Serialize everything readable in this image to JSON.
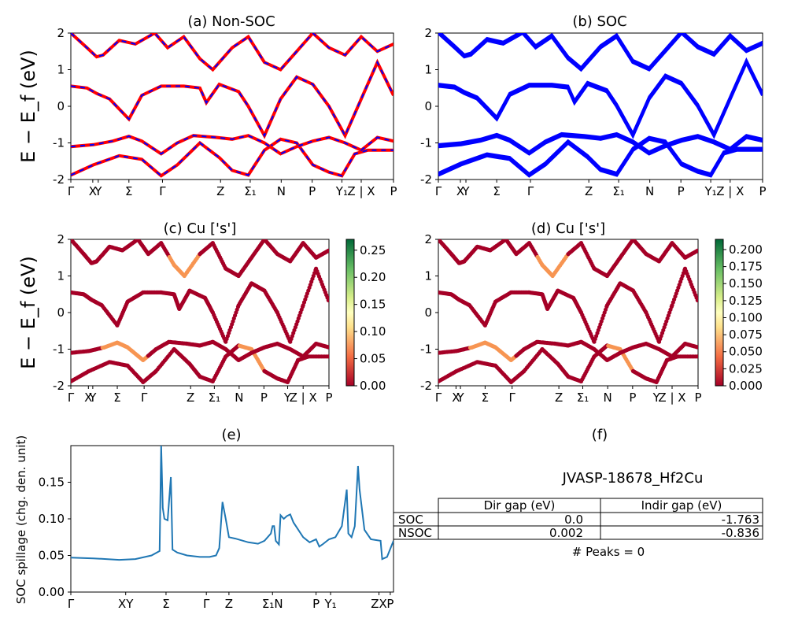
{
  "chart_data": [
    {
      "id": "a",
      "type": "line",
      "title": "(a) Non-SOC",
      "ylabel": "E − E_f (eV)",
      "ylim": [
        -2,
        2
      ],
      "y_ticks": [
        "-2",
        "-1",
        "0",
        "1",
        "2"
      ],
      "x_ticks": [
        "Γ",
        "X",
        "Y",
        "Σ",
        "Γ",
        "Z",
        "Σ₁",
        "N",
        "P",
        "Y₁",
        "Z | X",
        "P"
      ],
      "x_tick_pos": [
        0,
        0.068,
        0.085,
        0.18,
        0.284,
        0.464,
        0.556,
        0.652,
        0.748,
        0.84,
        0.9,
        1.0
      ],
      "series": [
        {
          "color": "#ff0000",
          "style": "solid",
          "values": [
            [
              0,
              -1.88
            ],
            [
              0.07,
              -1.6
            ],
            [
              0.15,
              -1.35
            ],
            [
              0.22,
              -1.45
            ],
            [
              0.28,
              -1.9
            ],
            [
              0.33,
              -1.6
            ],
            [
              0.4,
              -1.0
            ],
            [
              0.46,
              -1.4
            ],
            [
              0.5,
              -1.75
            ],
            [
              0.55,
              -1.88
            ],
            [
              0.6,
              -1.2
            ],
            [
              0.65,
              -0.9
            ],
            [
              0.7,
              -1.0
            ],
            [
              0.75,
              -1.6
            ],
            [
              0.8,
              -1.8
            ],
            [
              0.84,
              -1.9
            ],
            [
              0.88,
              -1.3
            ],
            [
              0.92,
              -1.2
            ],
            [
              1.0,
              -1.2
            ]
          ]
        },
        {
          "color": "#ff0000",
          "style": "solid",
          "values": [
            [
              0,
              -1.1
            ],
            [
              0.07,
              -1.05
            ],
            [
              0.13,
              -0.95
            ],
            [
              0.18,
              -0.82
            ],
            [
              0.22,
              -0.95
            ],
            [
              0.28,
              -1.3
            ],
            [
              0.33,
              -1.0
            ],
            [
              0.38,
              -0.8
            ],
            [
              0.45,
              -0.85
            ],
            [
              0.5,
              -0.9
            ],
            [
              0.55,
              -0.8
            ],
            [
              0.6,
              -1.0
            ],
            [
              0.65,
              -1.3
            ],
            [
              0.7,
              -1.1
            ],
            [
              0.75,
              -0.95
            ],
            [
              0.8,
              -0.85
            ],
            [
              0.85,
              -1.0
            ],
            [
              0.9,
              -1.2
            ],
            [
              0.95,
              -0.85
            ],
            [
              1.0,
              -0.95
            ]
          ]
        },
        {
          "color": "#ff0000",
          "style": "solid",
          "values": [
            [
              0,
              0.55
            ],
            [
              0.05,
              0.5
            ],
            [
              0.08,
              0.35
            ],
            [
              0.12,
              0.2
            ],
            [
              0.18,
              -0.35
            ],
            [
              0.22,
              0.3
            ],
            [
              0.28,
              0.55
            ],
            [
              0.35,
              0.55
            ],
            [
              0.4,
              0.5
            ],
            [
              0.42,
              0.1
            ],
            [
              0.46,
              0.6
            ],
            [
              0.52,
              0.4
            ],
            [
              0.55,
              0.0
            ],
            [
              0.6,
              -0.8
            ],
            [
              0.65,
              0.2
            ],
            [
              0.7,
              0.8
            ],
            [
              0.75,
              0.6
            ],
            [
              0.8,
              0.0
            ],
            [
              0.85,
              -0.8
            ],
            [
              0.9,
              0.2
            ],
            [
              0.95,
              1.2
            ],
            [
              1.0,
              0.3
            ]
          ]
        },
        {
          "color": "#ff0000",
          "style": "solid",
          "values": [
            [
              0,
              2.0
            ],
            [
              0.05,
              1.6
            ],
            [
              0.08,
              1.35
            ],
            [
              0.1,
              1.4
            ],
            [
              0.15,
              1.8
            ],
            [
              0.2,
              1.7
            ],
            [
              0.26,
              2.0
            ],
            [
              0.3,
              1.6
            ],
            [
              0.35,
              1.9
            ],
            [
              0.4,
              1.3
            ],
            [
              0.44,
              1.0
            ],
            [
              0.5,
              1.6
            ],
            [
              0.55,
              1.9
            ],
            [
              0.6,
              1.2
            ],
            [
              0.65,
              1.0
            ],
            [
              0.7,
              1.5
            ],
            [
              0.75,
              2.0
            ],
            [
              0.8,
              1.6
            ],
            [
              0.85,
              1.4
            ],
            [
              0.9,
              1.9
            ],
            [
              0.95,
              1.5
            ],
            [
              1.0,
              1.7
            ]
          ]
        }
      ],
      "overlay_color": "#0000ff"
    },
    {
      "id": "b",
      "type": "line",
      "title": "(b) SOC",
      "ylim": [
        -2,
        2
      ],
      "y_ticks": [
        "-2",
        "-1",
        "0",
        "1",
        "2"
      ],
      "x_ticks": [
        "Γ",
        "X",
        "Y",
        "Σ",
        "Γ",
        "Z",
        "Σ₁",
        "N",
        "P",
        "Y₁",
        "Z | X",
        "P"
      ],
      "x_tick_pos": [
        0,
        0.068,
        0.085,
        0.18,
        0.284,
        0.464,
        0.556,
        0.652,
        0.748,
        0.84,
        0.9,
        1.0
      ],
      "series": [
        {
          "color": "#0000ff",
          "style": "solid",
          "values": [
            [
              0,
              -1.88
            ],
            [
              0.07,
              -1.6
            ],
            [
              0.15,
              -1.35
            ],
            [
              0.22,
              -1.45
            ],
            [
              0.28,
              -1.9
            ],
            [
              0.33,
              -1.6
            ],
            [
              0.4,
              -1.0
            ],
            [
              0.46,
              -1.4
            ],
            [
              0.5,
              -1.75
            ],
            [
              0.55,
              -1.88
            ],
            [
              0.6,
              -1.2
            ],
            [
              0.65,
              -0.9
            ],
            [
              0.7,
              -1.0
            ],
            [
              0.75,
              -1.6
            ],
            [
              0.8,
              -1.8
            ],
            [
              0.84,
              -1.9
            ],
            [
              0.88,
              -1.3
            ],
            [
              0.92,
              -1.2
            ],
            [
              1.0,
              -1.2
            ]
          ]
        },
        {
          "color": "#0000ff",
          "style": "solid",
          "values": [
            [
              0,
              -1.1
            ],
            [
              0.07,
              -1.05
            ],
            [
              0.13,
              -0.95
            ],
            [
              0.18,
              -0.82
            ],
            [
              0.22,
              -0.95
            ],
            [
              0.28,
              -1.3
            ],
            [
              0.33,
              -1.0
            ],
            [
              0.38,
              -0.8
            ],
            [
              0.45,
              -0.85
            ],
            [
              0.5,
              -0.9
            ],
            [
              0.55,
              -0.8
            ],
            [
              0.6,
              -1.0
            ],
            [
              0.65,
              -1.3
            ],
            [
              0.7,
              -1.1
            ],
            [
              0.75,
              -0.95
            ],
            [
              0.8,
              -0.85
            ],
            [
              0.85,
              -1.0
            ],
            [
              0.9,
              -1.2
            ],
            [
              0.95,
              -0.85
            ],
            [
              1.0,
              -0.95
            ]
          ]
        },
        {
          "color": "#0000ff",
          "style": "solid",
          "values": [
            [
              0,
              0.55
            ],
            [
              0.05,
              0.5
            ],
            [
              0.08,
              0.35
            ],
            [
              0.12,
              0.2
            ],
            [
              0.18,
              -0.35
            ],
            [
              0.22,
              0.3
            ],
            [
              0.28,
              0.55
            ],
            [
              0.35,
              0.55
            ],
            [
              0.4,
              0.5
            ],
            [
              0.42,
              0.1
            ],
            [
              0.46,
              0.6
            ],
            [
              0.52,
              0.4
            ],
            [
              0.55,
              0.0
            ],
            [
              0.6,
              -0.8
            ],
            [
              0.65,
              0.2
            ],
            [
              0.7,
              0.8
            ],
            [
              0.75,
              0.6
            ],
            [
              0.8,
              0.0
            ],
            [
              0.85,
              -0.8
            ],
            [
              0.9,
              0.2
            ],
            [
              0.95,
              1.2
            ],
            [
              1.0,
              0.3
            ]
          ]
        },
        {
          "color": "#0000ff",
          "style": "solid",
          "values": [
            [
              0,
              2.0
            ],
            [
              0.05,
              1.6
            ],
            [
              0.08,
              1.35
            ],
            [
              0.1,
              1.4
            ],
            [
              0.15,
              1.8
            ],
            [
              0.2,
              1.7
            ],
            [
              0.26,
              2.0
            ],
            [
              0.3,
              1.6
            ],
            [
              0.35,
              1.9
            ],
            [
              0.4,
              1.3
            ],
            [
              0.44,
              1.0
            ],
            [
              0.5,
              1.6
            ],
            [
              0.55,
              1.9
            ],
            [
              0.6,
              1.2
            ],
            [
              0.65,
              1.0
            ],
            [
              0.7,
              1.5
            ],
            [
              0.75,
              2.0
            ],
            [
              0.8,
              1.6
            ],
            [
              0.85,
              1.4
            ],
            [
              0.9,
              1.9
            ],
            [
              0.95,
              1.5
            ],
            [
              1.0,
              1.7
            ]
          ]
        }
      ]
    },
    {
      "id": "c",
      "type": "scatter",
      "title": "(c)  Cu ['s']",
      "ylabel": "E − E_f (eV)",
      "ylim": [
        -2,
        2
      ],
      "y_ticks": [
        "-2",
        "-1",
        "0",
        "1",
        "2"
      ],
      "x_ticks": [
        "Γ",
        "X",
        "Y",
        "Σ",
        "Γ",
        "Z",
        "Σ₁",
        "N",
        "P",
        "Y",
        "Z | X",
        "P"
      ],
      "x_tick_pos": [
        0,
        0.068,
        0.085,
        0.18,
        0.284,
        0.464,
        0.556,
        0.652,
        0.748,
        0.84,
        0.9,
        1.0
      ],
      "colorbar": {
        "ticks": [
          "0.00",
          "0.05",
          "0.10",
          "0.15",
          "0.20",
          "0.25"
        ],
        "max": 0.27
      }
    },
    {
      "id": "d",
      "type": "scatter",
      "title": "(d) Cu ['s']",
      "ylim": [
        -2,
        2
      ],
      "y_ticks": [
        "-2",
        "-1",
        "0",
        "1",
        "2"
      ],
      "x_ticks": [
        "Γ",
        "X",
        "Y",
        "Σ",
        "Γ",
        "Z",
        "Σ₁",
        "N",
        "P",
        "Y",
        "Z | X",
        "P"
      ],
      "x_tick_pos": [
        0,
        0.068,
        0.085,
        0.18,
        0.284,
        0.464,
        0.556,
        0.652,
        0.748,
        0.84,
        0.9,
        1.0
      ],
      "colorbar": {
        "ticks": [
          "0.000",
          "0.025",
          "0.050",
          "0.075",
          "0.100",
          "0.125",
          "0.150",
          "0.175",
          "0.200"
        ],
        "max": 0.215
      }
    },
    {
      "id": "e",
      "type": "line",
      "title": "(e)",
      "ylabel": "SOC spillage (chg. den. unit)",
      "ylim": [
        0,
        0.2
      ],
      "y_ticks": [
        "0.00",
        "0.05",
        "0.10",
        "0.15"
      ],
      "x_ticks": [
        "Γ",
        "XY",
        "Σ",
        "Γ",
        "Z",
        "Σ₁N",
        "P",
        "Y₁",
        "ZX",
        "P"
      ],
      "x_tick_pos": [
        0,
        0.17,
        0.295,
        0.42,
        0.49,
        0.625,
        0.76,
        0.805,
        0.955,
        0.99
      ],
      "series": [
        {
          "color": "#1f77b4",
          "style": "solid",
          "values": [
            [
              0,
              0.047
            ],
            [
              0.07,
              0.046
            ],
            [
              0.15,
              0.044
            ],
            [
              0.2,
              0.045
            ],
            [
              0.25,
              0.05
            ],
            [
              0.275,
              0.056
            ],
            [
              0.28,
              0.2
            ],
            [
              0.285,
              0.115
            ],
            [
              0.29,
              0.1
            ],
            [
              0.3,
              0.098
            ],
            [
              0.31,
              0.157
            ],
            [
              0.315,
              0.058
            ],
            [
              0.33,
              0.054
            ],
            [
              0.36,
              0.05
            ],
            [
              0.4,
              0.048
            ],
            [
              0.43,
              0.048
            ],
            [
              0.45,
              0.05
            ],
            [
              0.46,
              0.06
            ],
            [
              0.47,
              0.123
            ],
            [
              0.48,
              0.1
            ],
            [
              0.49,
              0.075
            ],
            [
              0.51,
              0.073
            ],
            [
              0.55,
              0.068
            ],
            [
              0.58,
              0.066
            ],
            [
              0.6,
              0.07
            ],
            [
              0.62,
              0.08
            ],
            [
              0.625,
              0.09
            ],
            [
              0.63,
              0.09
            ],
            [
              0.635,
              0.07
            ],
            [
              0.645,
              0.065
            ],
            [
              0.65,
              0.105
            ],
            [
              0.66,
              0.1
            ],
            [
              0.67,
              0.104
            ],
            [
              0.68,
              0.106
            ],
            [
              0.69,
              0.095
            ],
            [
              0.72,
              0.075
            ],
            [
              0.74,
              0.068
            ],
            [
              0.76,
              0.072
            ],
            [
              0.77,
              0.062
            ],
            [
              0.78,
              0.065
            ],
            [
              0.8,
              0.072
            ],
            [
              0.82,
              0.075
            ],
            [
              0.84,
              0.09
            ],
            [
              0.855,
              0.14
            ],
            [
              0.86,
              0.08
            ],
            [
              0.87,
              0.075
            ],
            [
              0.88,
              0.09
            ],
            [
              0.89,
              0.172
            ],
            [
              0.895,
              0.14
            ],
            [
              0.91,
              0.085
            ],
            [
              0.93,
              0.072
            ],
            [
              0.96,
              0.07
            ],
            [
              0.965,
              0.045
            ],
            [
              0.98,
              0.048
            ],
            [
              1.0,
              0.07
            ]
          ]
        }
      ]
    }
  ],
  "table": {
    "panel_title": "(f)",
    "title": "JVASP-18678_Hf2Cu",
    "header": [
      "Dir gap (eV)",
      "Indir gap (eV)"
    ],
    "rows": [
      {
        "label": "SOC",
        "dir": "0.0",
        "indir": "-1.763"
      },
      {
        "label": "NSOC",
        "dir": "0.002",
        "indir": "-0.836"
      }
    ],
    "footer": "# Peaks = 0"
  }
}
